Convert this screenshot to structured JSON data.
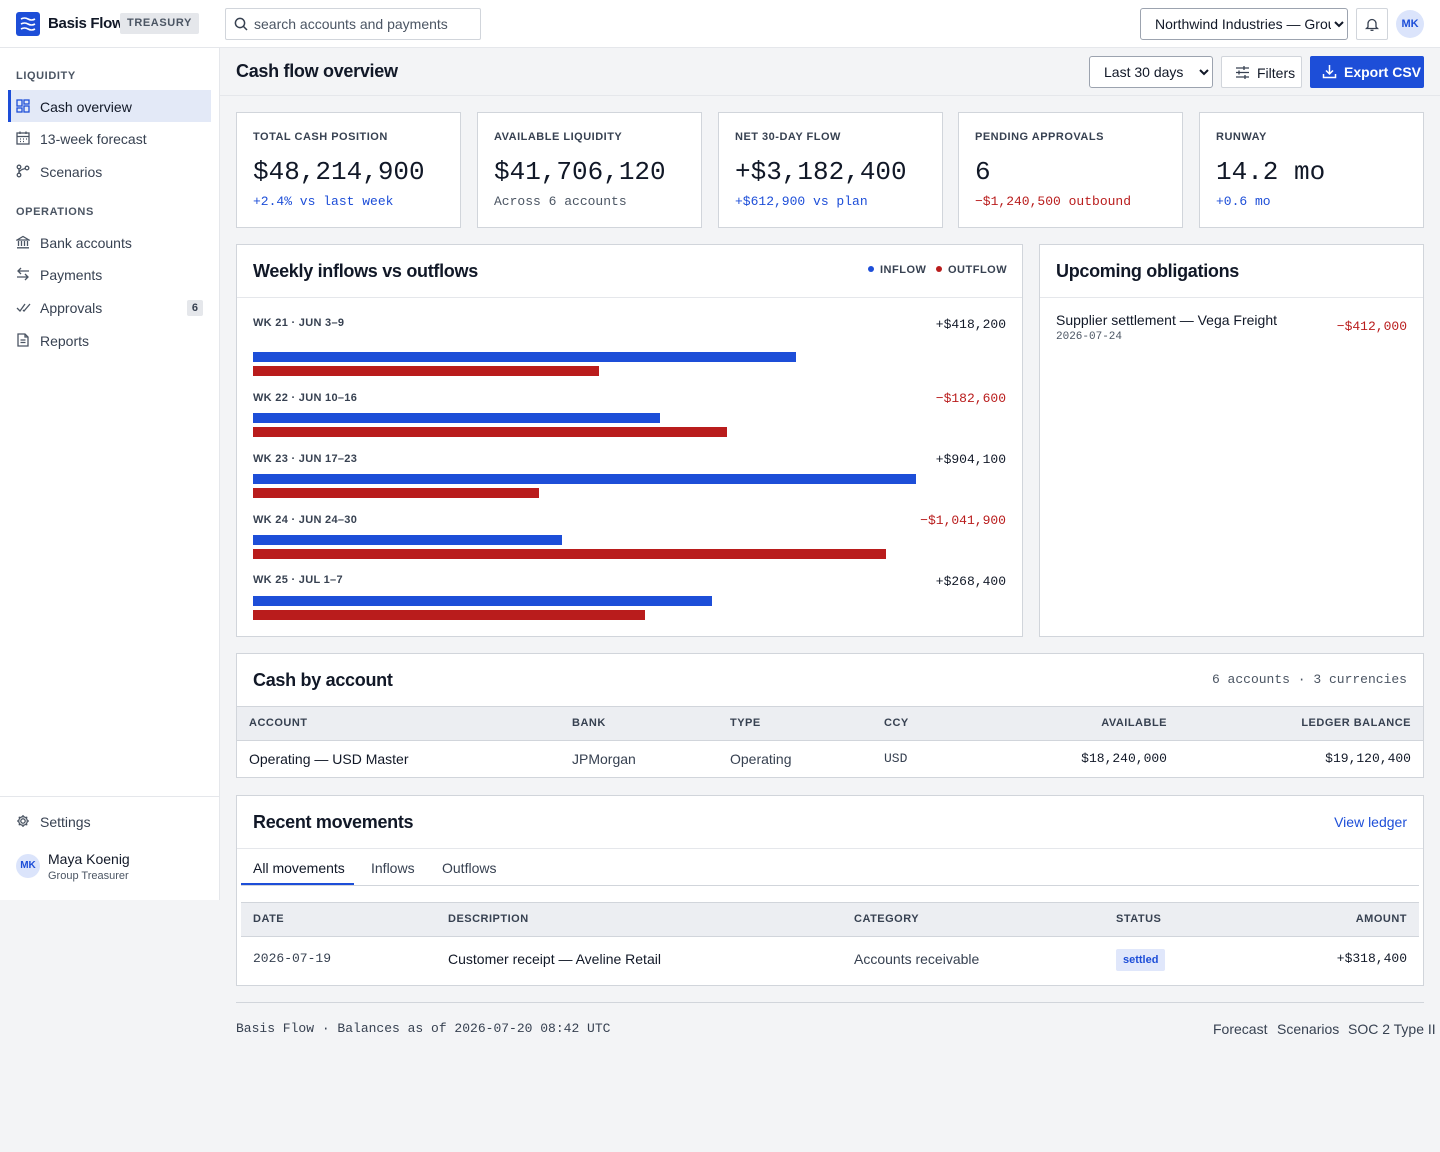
{
  "app": {
    "name": "Basis Flow",
    "badge": "TREASURY",
    "user_initials": "MK"
  },
  "search": {
    "placeholder": "search accounts and payments"
  },
  "org": {
    "selected": "Northwind Industries — Group"
  },
  "sidebar": {
    "sections": [
      {
        "title": "LIQUIDITY",
        "items": [
          {
            "label": "Cash overview",
            "icon": "dashboard-icon",
            "active": true
          },
          {
            "label": "13-week forecast",
            "icon": "calendar-icon"
          },
          {
            "label": "Scenarios",
            "icon": "branch-icon"
          }
        ]
      },
      {
        "title": "OPERATIONS",
        "items": [
          {
            "label": "Bank accounts",
            "icon": "bank-icon"
          },
          {
            "label": "Payments",
            "icon": "transfer-icon"
          },
          {
            "label": "Approvals",
            "icon": "check-icon",
            "badge": "6"
          },
          {
            "label": "Reports",
            "icon": "report-icon"
          }
        ]
      }
    ],
    "settings_label": "Settings",
    "user": {
      "initials": "MK",
      "name": "Maya Koenig",
      "role": "Group Treasurer"
    }
  },
  "header": {
    "title": "Cash flow overview",
    "range": "Last 30 days",
    "filters_label": "Filters",
    "export_label": "Export CSV"
  },
  "kpis": [
    {
      "label": "TOTAL CASH POSITION",
      "value": "$48,214,900",
      "sub": "+2.4% vs last week",
      "tone": "blue"
    },
    {
      "label": "AVAILABLE LIQUIDITY",
      "value": "$41,706,120",
      "sub": "Across 6 accounts",
      "tone": "gray"
    },
    {
      "label": "NET 30-DAY FLOW",
      "value": "+$3,182,400",
      "sub": "+$612,900 vs plan",
      "tone": "blue"
    },
    {
      "label": "PENDING APPROVALS",
      "value": "6",
      "sub": "−$1,240,500 outbound",
      "tone": "red"
    },
    {
      "label": "RUNWAY",
      "value": "14.2 mo",
      "sub": "+0.6 mo",
      "tone": "blue"
    }
  ],
  "colors": {
    "accent": "#1d4ed8",
    "inflow": "#1d4ed8",
    "outflow": "#b91c1c",
    "positive": "#1d4ed8",
    "negative": "#b91c1c"
  },
  "weekly_chart": {
    "title": "Weekly inflows vs outflows",
    "legend_inflow": "INFLOW",
    "legend_outflow": "OUTFLOW",
    "weeks": [
      {
        "label": "WK 21 · JUN 3–9",
        "net": "+$418,200",
        "inflow_frac": 0.721,
        "outflow_frac": 0.46
      },
      {
        "label": "WK 22 · JUN 10–16",
        "net": "−$182,600",
        "inflow_frac": 0.54,
        "outflow_frac": 0.63
      },
      {
        "label": "WK 23 · JUN 17–23",
        "net": "+$904,100",
        "inflow_frac": 0.88,
        "outflow_frac": 0.38
      },
      {
        "label": "WK 24 · JUN 24–30",
        "net": "−$1,041,900",
        "inflow_frac": 0.411,
        "outflow_frac": 0.84
      },
      {
        "label": "WK 25 · JUL 1–7",
        "net": "+$268,400",
        "inflow_frac": 0.61,
        "outflow_frac": 0.52
      }
    ]
  },
  "obligations": {
    "title": "Upcoming obligations",
    "items": [
      {
        "desc": "Supplier settlement — Vega Freight",
        "date": "2026-07-24",
        "amount": "−$412,000"
      }
    ]
  },
  "accounts": {
    "title": "Cash by account",
    "meta": "6 accounts · 3 currencies",
    "columns": [
      "ACCOUNT",
      "BANK",
      "TYPE",
      "CCY",
      "AVAILABLE",
      "LEDGER BALANCE"
    ],
    "rows": [
      {
        "account": "Operating — USD Master",
        "bank": "JPMorgan",
        "type": "Operating",
        "ccy": "USD",
        "available": "$18,240,000",
        "ledger": "$19,120,400"
      }
    ]
  },
  "movements": {
    "title": "Recent movements",
    "view_link": "View ledger",
    "tabs": [
      "All movements",
      "Inflows",
      "Outflows"
    ],
    "columns": [
      "DATE",
      "DESCRIPTION",
      "CATEGORY",
      "STATUS",
      "AMOUNT"
    ],
    "rows": [
      {
        "date": "2026-07-19",
        "desc": "Customer receipt — Aveline Retail",
        "category": "Accounts receivable",
        "status": "settled",
        "amount": "+$318,400"
      }
    ]
  },
  "footer": {
    "text": "Basis Flow · Balances as of 2026-07-20 08:42 UTC",
    "links": [
      "Forecast",
      "Scenarios",
      "SOC 2 Type II"
    ]
  }
}
